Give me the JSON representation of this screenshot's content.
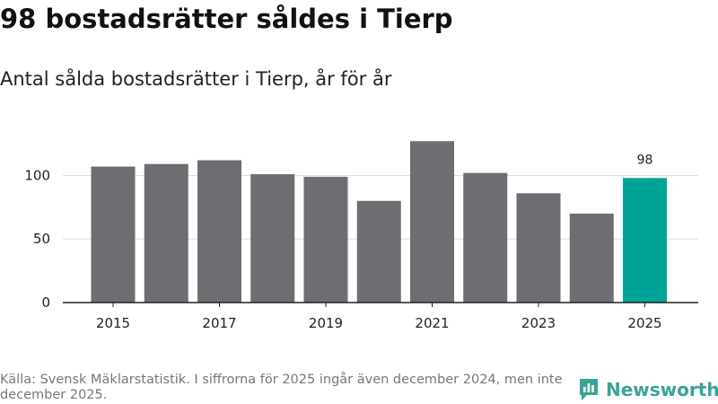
{
  "title": "98 bostadsrätter såldes i Tierp",
  "subtitle": "Antal sålda bostadsrätter i Tierp, år för år",
  "footer": "Källa: Svensk Mäklarstatistik. I siffrorna för 2025 ingår även december 2024, men inte december 2025.",
  "brand": {
    "name": "Newsworthy",
    "icon": "bar-chart-logo-icon"
  },
  "colors": {
    "bar": "#6e6d72",
    "highlight": "#00a497",
    "grid": "#dddddd",
    "axis": "#222222",
    "text": "#222222",
    "brand": "#3aa397"
  },
  "chart_data": {
    "type": "bar",
    "categories": [
      "2015",
      "2016",
      "2017",
      "2018",
      "2019",
      "2020",
      "2021",
      "2022",
      "2023",
      "2024",
      "2025"
    ],
    "values": [
      107,
      109,
      112,
      101,
      99,
      80,
      127,
      102,
      86,
      70,
      98
    ],
    "highlight_index": 10,
    "data_labels": [
      {
        "category": "2025",
        "text": "98"
      }
    ],
    "x_ticks": [
      "2015",
      "2017",
      "2019",
      "2021",
      "2023",
      "2025"
    ],
    "y_ticks": [
      0,
      50,
      100
    ],
    "ylim": [
      0,
      130
    ],
    "grid": true,
    "xlabel": "",
    "ylabel": ""
  }
}
